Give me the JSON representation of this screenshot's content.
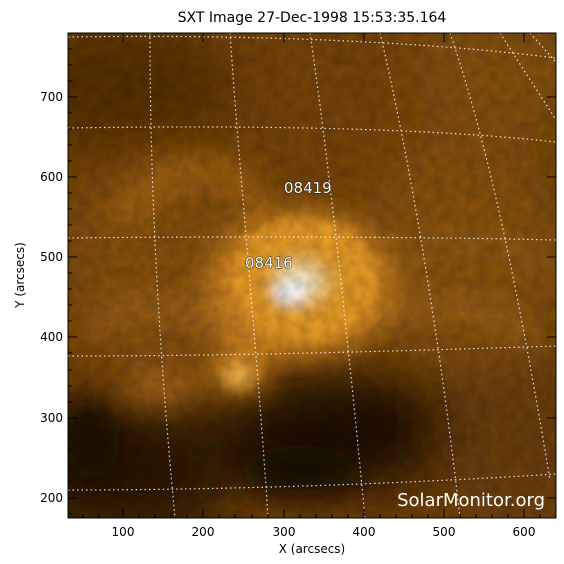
{
  "header": {
    "title": "SXT Image 27-Dec-1998 15:53:35.164"
  },
  "axes": {
    "x_label": "X (arcsecs)",
    "y_label": "Y (arcsecs)",
    "x_ticks": [
      "100",
      "200",
      "300",
      "400",
      "500",
      "600"
    ],
    "y_ticks": [
      "200",
      "300",
      "400",
      "500",
      "600",
      "700"
    ]
  },
  "regions": {
    "region_1": "08419",
    "region_2": "08416"
  },
  "watermark": {
    "text": "SolarMonitor.org"
  },
  "colors": {
    "dark": "#1a0d03",
    "mid": "#7a4708",
    "bright": "#f0a128",
    "core": "#fff6dc",
    "grid": "#ffffff"
  }
}
